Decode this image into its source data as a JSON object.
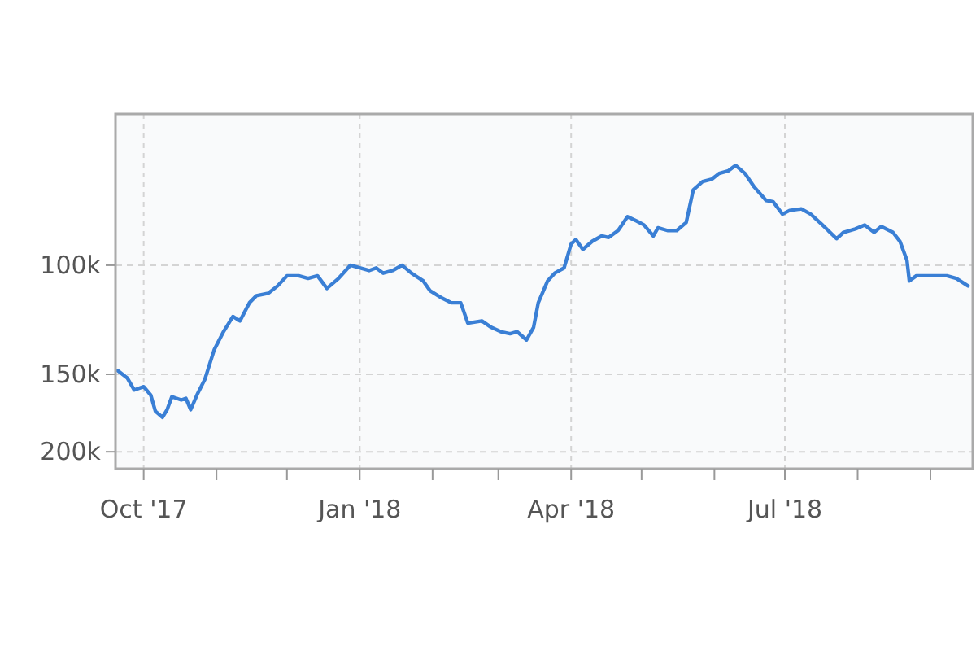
{
  "chart_data": {
    "type": "line",
    "log": true,
    "grid": true,
    "xlim": [
      "2017-09-19",
      "2018-09-19"
    ],
    "xticks": [
      {
        "value": "2017-10",
        "label": "Oct '17"
      },
      {
        "value": "2017-11",
        "label": null
      },
      {
        "value": "2017-12",
        "label": null
      },
      {
        "value": "2018-01",
        "label": "Jan '18"
      },
      {
        "value": "2018-02",
        "label": null
      },
      {
        "value": "2018-03",
        "label": null
      },
      {
        "value": "2018-04",
        "label": "Apr '18"
      },
      {
        "value": "2018-05",
        "label": null
      },
      {
        "value": "2018-06",
        "label": null
      },
      {
        "value": "2018-07",
        "label": "Jul '18"
      },
      {
        "value": "2018-08",
        "label": null
      },
      {
        "value": "2018-09",
        "label": null
      }
    ],
    "ylim": [
      213000,
      57000
    ],
    "yticks": [
      {
        "value": 100000,
        "label": "100k"
      },
      {
        "value": 150000,
        "label": "150k"
      },
      {
        "value": 200000,
        "label": "200k"
      }
    ],
    "x": [
      "2017-09-20",
      "2017-09-24",
      "2017-09-27",
      "2017-10-01",
      "2017-10-04",
      "2017-10-06",
      "2017-10-09",
      "2017-10-11",
      "2017-10-13",
      "2017-10-17",
      "2017-10-19",
      "2017-10-21",
      "2017-10-24",
      "2017-10-27",
      "2017-10-31",
      "2017-11-04",
      "2017-11-08",
      "2017-11-11",
      "2017-11-15",
      "2017-11-18",
      "2017-11-23",
      "2017-11-27",
      "2017-12-01",
      "2017-12-06",
      "2017-12-10",
      "2017-12-14",
      "2017-12-18",
      "2017-12-23",
      "2017-12-28",
      "2018-01-01",
      "2018-01-05",
      "2018-01-08",
      "2018-01-11",
      "2018-01-15",
      "2018-01-19",
      "2018-01-23",
      "2018-01-28",
      "2018-01-31",
      "2018-02-05",
      "2018-02-09",
      "2018-02-13",
      "2018-02-16",
      "2018-02-22",
      "2018-02-26",
      "2018-03-02",
      "2018-03-06",
      "2018-03-09",
      "2018-03-13",
      "2018-03-16",
      "2018-03-18",
      "2018-03-22",
      "2018-03-25",
      "2018-03-29",
      "2018-04-01",
      "2018-04-03",
      "2018-04-06",
      "2018-04-10",
      "2018-04-14",
      "2018-04-17",
      "2018-04-21",
      "2018-04-25",
      "2018-04-29",
      "2018-05-02",
      "2018-05-06",
      "2018-05-08",
      "2018-05-12",
      "2018-05-16",
      "2018-05-20",
      "2018-05-23",
      "2018-05-27",
      "2018-05-31",
      "2018-06-03",
      "2018-06-07",
      "2018-06-10",
      "2018-06-14",
      "2018-06-18",
      "2018-06-23",
      "2018-06-26",
      "2018-06-30",
      "2018-07-03",
      "2018-07-08",
      "2018-07-12",
      "2018-07-17",
      "2018-07-23",
      "2018-07-26",
      "2018-07-31",
      "2018-08-04",
      "2018-08-08",
      "2018-08-11",
      "2018-08-16",
      "2018-08-19",
      "2018-08-22",
      "2018-08-23",
      "2018-08-26",
      "2018-08-30",
      "2018-09-03",
      "2018-09-08",
      "2018-09-12",
      "2018-09-17"
    ],
    "series": [
      {
        "color": "#3a7fd5",
        "values": [
          148000,
          152000,
          159000,
          157000,
          162000,
          172000,
          176000,
          171000,
          163000,
          165000,
          164000,
          171000,
          161000,
          153000,
          137000,
          128000,
          121000,
          123000,
          115000,
          112000,
          111000,
          108000,
          104000,
          104000,
          105000,
          104000,
          109000,
          105000,
          100000,
          101000,
          102000,
          101000,
          103000,
          102000,
          100000,
          103000,
          106000,
          110000,
          113000,
          115000,
          115000,
          124000,
          123000,
          126000,
          128000,
          129000,
          128000,
          132000,
          126000,
          115000,
          106000,
          103000,
          101000,
          92400,
          90900,
          94300,
          91500,
          89700,
          90200,
          87900,
          83500,
          84900,
          86100,
          89700,
          87000,
          87900,
          87900,
          85300,
          75600,
          73300,
          72600,
          71100,
          70400,
          69000,
          71100,
          74800,
          78600,
          79000,
          82700,
          81600,
          81100,
          82700,
          86100,
          90600,
          88500,
          87400,
          86100,
          88500,
          86600,
          88500,
          91500,
          98200,
          106000,
          104000,
          104000,
          104000,
          104000,
          105000,
          108000
        ]
      }
    ]
  }
}
